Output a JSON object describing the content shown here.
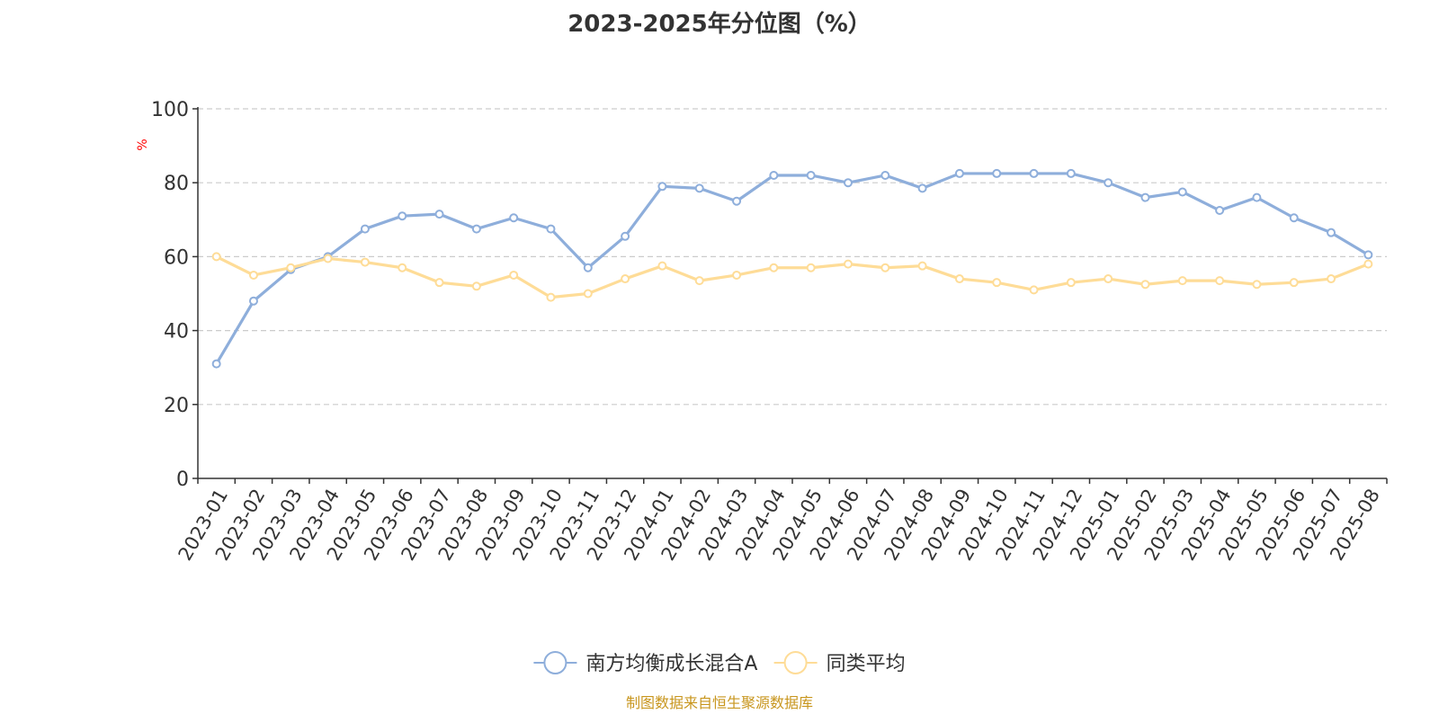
{
  "chart_data": {
    "type": "line",
    "title": "2023-2025年分位图（%）",
    "ylabel": "%",
    "xlabel": "",
    "ylim": [
      0,
      100
    ],
    "y_ticks": [
      0,
      20,
      40,
      60,
      80,
      100
    ],
    "grid": true,
    "legend_position": "bottom-center",
    "categories": [
      "2023-01",
      "2023-02",
      "2023-03",
      "2023-04",
      "2023-05",
      "2023-06",
      "2023-07",
      "2023-08",
      "2023-09",
      "2023-10",
      "2023-11",
      "2023-12",
      "2024-01",
      "2024-02",
      "2024-03",
      "2024-04",
      "2024-05",
      "2024-06",
      "2024-07",
      "2024-08",
      "2024-09",
      "2024-10",
      "2024-11",
      "2024-12",
      "2025-01",
      "2025-02",
      "2025-03",
      "2025-04",
      "2025-05",
      "2025-06",
      "2025-07",
      "2025-08"
    ],
    "series": [
      {
        "name": "南方均衡成长混合A",
        "color": "#8eaedb",
        "values": [
          31,
          48,
          56.5,
          60,
          67.5,
          71,
          71.5,
          67.5,
          70.5,
          67.5,
          57,
          65.5,
          79,
          78.5,
          75,
          82,
          82,
          80,
          82,
          78.5,
          82.5,
          82.5,
          82.5,
          82.5,
          80,
          76,
          77.5,
          72.5,
          76,
          70.5,
          66.5,
          60.5
        ]
      },
      {
        "name": "同类平均",
        "color": "#fedc97",
        "values": [
          60,
          55,
          57,
          59.5,
          58.5,
          57,
          53,
          52,
          55,
          49,
          50,
          54,
          57.5,
          53.5,
          55,
          57,
          57,
          58,
          57,
          57.5,
          54,
          53,
          51,
          53,
          54,
          52.5,
          53.5,
          53.5,
          52.5,
          53,
          54,
          58
        ]
      }
    ]
  },
  "source_text": "制图数据来自恒生聚源数据库",
  "colors": {
    "axis": "#333333",
    "grid": "#cccccc",
    "title": "#333333",
    "ylabel": "#ff0000",
    "source": "#c8961e"
  }
}
